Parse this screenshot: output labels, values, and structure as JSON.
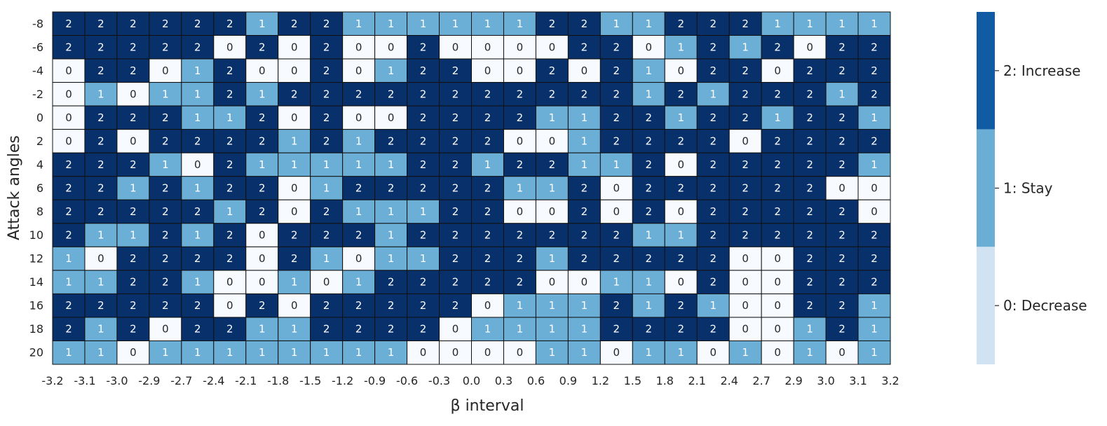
{
  "chart_data": {
    "type": "heatmap",
    "xlabel": "β interval",
    "ylabel": "Attack angles",
    "x_tick_labels": [
      "-3.2",
      "-3.1",
      "-3.0",
      "-2.9",
      "-2.7",
      "-2.4",
      "-2.1",
      "-1.8",
      "-1.5",
      "-1.2",
      "-0.9",
      "-0.6",
      "-0.3",
      "0.0",
      "0.3",
      "0.6",
      "0.9",
      "1.2",
      "1.5",
      "1.8",
      "2.1",
      "2.4",
      "2.7",
      "2.9",
      "3.0",
      "3.1",
      "3.2"
    ],
    "y_tick_labels": [
      "-8",
      "-6",
      "-4",
      "-2",
      "0",
      "2",
      "4",
      "6",
      "8",
      "10",
      "12",
      "14",
      "16",
      "18",
      "20"
    ],
    "values": [
      [
        2,
        2,
        2,
        2,
        2,
        2,
        1,
        2,
        2,
        1,
        1,
        1,
        1,
        1,
        1,
        2,
        2,
        1,
        1,
        2,
        2,
        2,
        1,
        1,
        1,
        1
      ],
      [
        2,
        2,
        2,
        2,
        2,
        0,
        2,
        0,
        2,
        0,
        0,
        2,
        0,
        0,
        0,
        0,
        2,
        2,
        0,
        1,
        2,
        1,
        2,
        0,
        2,
        2
      ],
      [
        0,
        2,
        2,
        0,
        1,
        2,
        0,
        0,
        2,
        0,
        1,
        2,
        2,
        0,
        0,
        2,
        0,
        2,
        1,
        0,
        2,
        2,
        0,
        2,
        2,
        2
      ],
      [
        0,
        1,
        0,
        1,
        1,
        2,
        1,
        2,
        2,
        2,
        2,
        2,
        2,
        2,
        2,
        2,
        2,
        2,
        1,
        2,
        1,
        2,
        2,
        2,
        1,
        2
      ],
      [
        0,
        2,
        2,
        2,
        1,
        1,
        2,
        0,
        2,
        0,
        0,
        2,
        2,
        2,
        2,
        1,
        1,
        2,
        2,
        1,
        2,
        2,
        1,
        2,
        2,
        1
      ],
      [
        0,
        2,
        0,
        2,
        2,
        2,
        2,
        1,
        2,
        1,
        2,
        2,
        2,
        2,
        0,
        0,
        1,
        2,
        2,
        2,
        2,
        0,
        2,
        2,
        2,
        2
      ],
      [
        2,
        2,
        2,
        1,
        0,
        2,
        1,
        1,
        1,
        1,
        1,
        2,
        2,
        1,
        2,
        2,
        1,
        1,
        2,
        0,
        2,
        2,
        2,
        2,
        2,
        1
      ],
      [
        2,
        2,
        1,
        2,
        1,
        2,
        2,
        0,
        1,
        2,
        2,
        2,
        2,
        2,
        1,
        1,
        2,
        0,
        2,
        2,
        2,
        2,
        2,
        2,
        0,
        0
      ],
      [
        2,
        2,
        2,
        2,
        2,
        1,
        2,
        0,
        2,
        1,
        1,
        1,
        2,
        2,
        0,
        0,
        2,
        0,
        2,
        0,
        2,
        2,
        2,
        2,
        2,
        0
      ],
      [
        2,
        1,
        1,
        2,
        1,
        2,
        0,
        2,
        2,
        2,
        1,
        2,
        2,
        2,
        2,
        2,
        2,
        2,
        1,
        1,
        2,
        2,
        2,
        2,
        2,
        2
      ],
      [
        1,
        0,
        2,
        2,
        2,
        2,
        0,
        2,
        1,
        0,
        1,
        1,
        2,
        2,
        2,
        1,
        2,
        2,
        2,
        2,
        2,
        0,
        0,
        2,
        2,
        2
      ],
      [
        1,
        1,
        2,
        2,
        1,
        0,
        0,
        1,
        0,
        1,
        2,
        2,
        2,
        2,
        2,
        0,
        0,
        1,
        1,
        0,
        2,
        0,
        0,
        2,
        2,
        2
      ],
      [
        2,
        2,
        2,
        2,
        2,
        0,
        2,
        0,
        2,
        2,
        2,
        2,
        2,
        0,
        1,
        1,
        1,
        2,
        1,
        2,
        1,
        0,
        0,
        2,
        2,
        1
      ],
      [
        2,
        1,
        2,
        0,
        2,
        2,
        1,
        1,
        2,
        2,
        2,
        2,
        0,
        1,
        1,
        1,
        1,
        2,
        2,
        2,
        2,
        0,
        0,
        1,
        2,
        1
      ],
      [
        1,
        1,
        0,
        1,
        1,
        1,
        1,
        1,
        1,
        1,
        1,
        0,
        0,
        0,
        0,
        1,
        1,
        0,
        1,
        1,
        0,
        1,
        0,
        1,
        0,
        1
      ]
    ],
    "cell_colors": {
      "0": "#f7fbff",
      "1": "#6baed6",
      "2": "#08306b"
    },
    "text_colors": {
      "0": "#262626",
      "1": "#ffffff",
      "2": "#ffffff"
    },
    "legend": {
      "placement": "right",
      "entries": [
        {
          "label": "2: Increase",
          "color": "#105ba4"
        },
        {
          "label": "1: Stay",
          "color": "#6aaed6"
        },
        {
          "label": "0: Decrease",
          "color": "#d1e2f2"
        }
      ]
    }
  }
}
